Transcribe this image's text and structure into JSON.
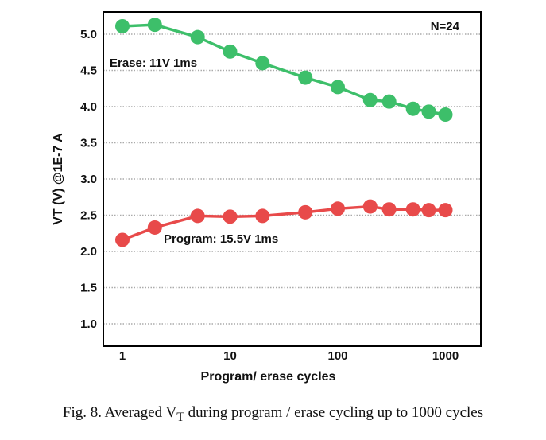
{
  "chart_data": {
    "type": "line",
    "x_scale": "log",
    "x": [
      1,
      2,
      5,
      10,
      20,
      50,
      100,
      200,
      300,
      500,
      700,
      1000
    ],
    "series": [
      {
        "name": "Erase: 11V 1ms",
        "color": "#3dbf6a",
        "values": [
          5.11,
          5.13,
          4.96,
          4.76,
          4.6,
          4.4,
          4.27,
          4.09,
          4.07,
          3.97,
          3.93,
          3.89
        ]
      },
      {
        "name": "Program: 15.5V 1ms",
        "color": "#e84a4a",
        "values": [
          2.16,
          2.33,
          2.49,
          2.48,
          2.49,
          2.54,
          2.59,
          2.62,
          2.58,
          2.58,
          2.57,
          2.57
        ]
      }
    ],
    "xlabel": "Program/ erase cycles",
    "ylabel": "VT (V)  @1E-7 A",
    "xticks": [
      1,
      10,
      100,
      1000
    ],
    "xtick_labels": [
      "1",
      "10",
      "100",
      "1000"
    ],
    "yticks": [
      1.0,
      1.5,
      2.0,
      2.5,
      3.0,
      3.5,
      4.0,
      4.5,
      5.0
    ],
    "ytick_labels": [
      "1.0",
      "1.5",
      "2.0",
      "2.5",
      "3.0",
      "3.5",
      "4.0",
      "4.5",
      "5.0"
    ],
    "ylim": [
      0.7,
      5.3
    ],
    "grid": "horizontal dotted",
    "annotation": "N=24"
  },
  "caption": {
    "prefix": "Fig. 8.   Averaged V",
    "subscript": "T",
    "suffix": " during program / erase cycling up to 1000 cycles"
  }
}
